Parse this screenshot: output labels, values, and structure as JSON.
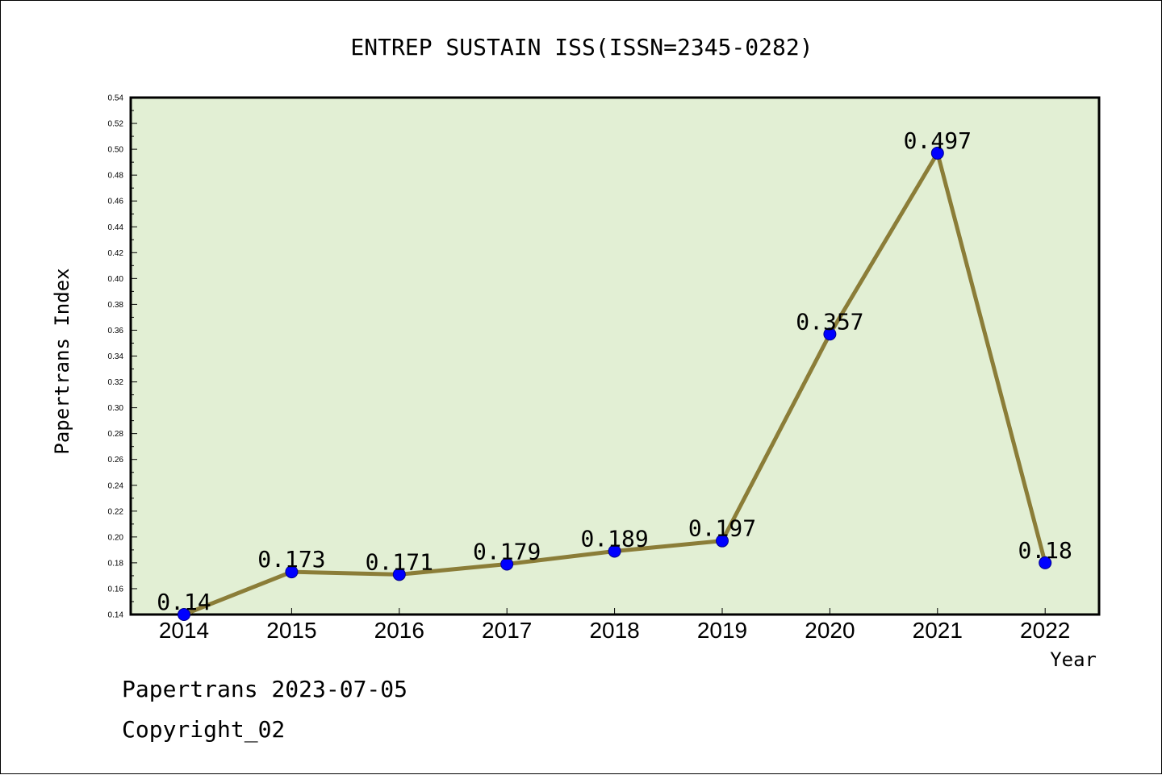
{
  "footer": {
    "line1": "Papertrans 2023-07-05",
    "line2": "Copyright_02"
  },
  "colors": {
    "plot_background": "#e2efd4",
    "line": "#8b7d38",
    "marker": "#0000ff",
    "marker_edge": "#00008b"
  },
  "chart_data": {
    "type": "line",
    "title": "ENTREP SUSTAIN ISS(ISSN=2345-0282)",
    "xlabel": "Year",
    "ylabel": "Papertrans Index",
    "categories": [
      "2014",
      "2015",
      "2016",
      "2017",
      "2018",
      "2019",
      "2020",
      "2021",
      "2022"
    ],
    "series": [
      {
        "values": [
          0.14,
          0.173,
          0.171,
          0.179,
          0.189,
          0.197,
          0.357,
          0.497,
          0.18
        ],
        "labels": [
          "0.14",
          "0.173",
          "0.171",
          "0.179",
          "0.189",
          "0.197",
          "0.357",
          "0.497",
          "0.18"
        ]
      }
    ],
    "ylim": [
      0.14,
      0.54
    ],
    "yticks": [
      "0.14",
      "0.16",
      "0.18",
      "0.20",
      "0.22",
      "0.24",
      "0.26",
      "0.28",
      "0.30",
      "0.32",
      "0.34",
      "0.36",
      "0.38",
      "0.40",
      "0.42",
      "0.44",
      "0.46",
      "0.48",
      "0.50",
      "0.52",
      "0.54"
    ],
    "grid": false,
    "legend": "none"
  }
}
